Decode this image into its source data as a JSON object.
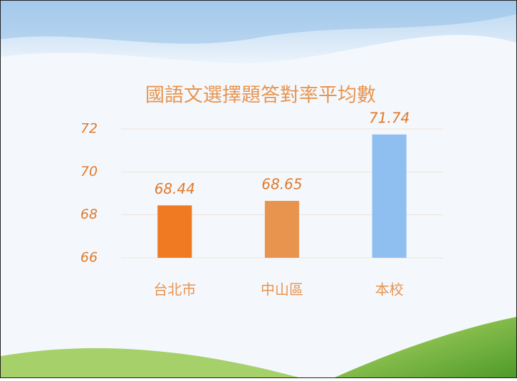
{
  "chart_data": {
    "type": "bar",
    "title": "國語文選擇題答對率平均數",
    "categories": [
      "台北市",
      "中山區",
      "本校"
    ],
    "values": [
      68.44,
      68.65,
      71.74
    ],
    "colors": [
      "#f07a22",
      "#e8944f",
      "#8fbff0"
    ],
    "ylim": [
      66,
      72
    ],
    "yticks": [
      66,
      68,
      70,
      72
    ],
    "grid": true
  }
}
